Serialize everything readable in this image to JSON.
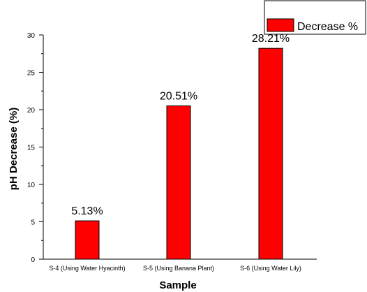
{
  "chart_data": {
    "type": "bar",
    "categories": [
      "S-4 (Using Water Hyacinth)",
      "S-5 (Using Banana Plant)",
      "S-6 (Using Water Lily)"
    ],
    "series": [
      {
        "name": "Decrease %",
        "values": [
          5.13,
          20.51,
          28.21
        ],
        "labels": [
          "5.13%",
          "20.51%",
          "28.21%"
        ]
      }
    ],
    "xlabel": "Sample",
    "ylabel": "pH Decrease (%)",
    "ylim": [
      0,
      30
    ],
    "yticks": [
      "0",
      "5",
      "10",
      "15",
      "20",
      "25",
      "30"
    ],
    "grid": false,
    "legend_position": "top-right",
    "bar_color": "#ff0000"
  }
}
